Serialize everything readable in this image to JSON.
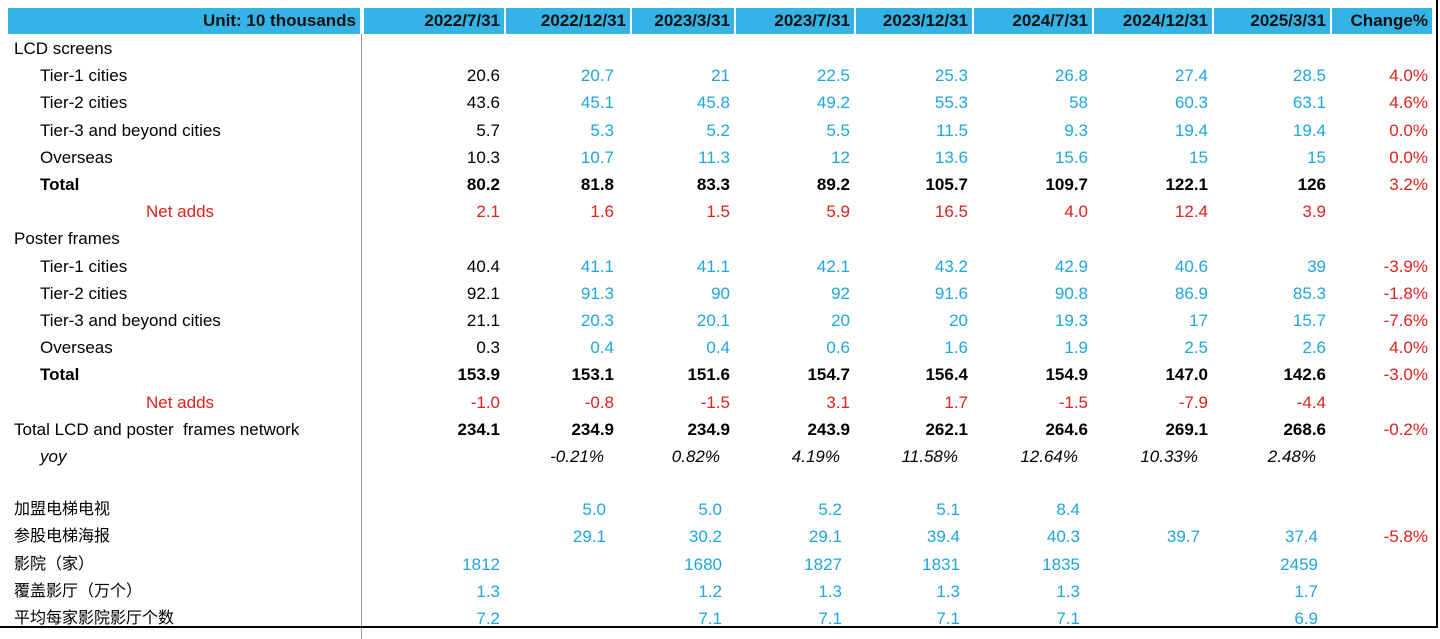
{
  "header": {
    "unit": "Unit: 10 thousands",
    "columns": [
      "2022/7/31",
      "2022/12/31",
      "2023/3/31",
      "2023/7/31",
      "2023/12/31",
      "2024/7/31",
      "2024/12/31",
      "2025/3/31",
      "Change%"
    ]
  },
  "rows": [
    {
      "label": "LCD screens"
    },
    {
      "label": "Tier-1 cities",
      "cells": [
        "20.6",
        "20.7",
        "21",
        "22.5",
        "25.3",
        "26.8",
        "27.4",
        "28.5",
        "4.0%"
      ]
    },
    {
      "label": "Tier-2 cities",
      "cells": [
        "43.6",
        "45.1",
        "45.8",
        "49.2",
        "55.3",
        "58",
        "60.3",
        "63.1",
        "4.6%"
      ]
    },
    {
      "label": "Tier-3 and beyond cities",
      "cells": [
        "5.7",
        "5.3",
        "5.2",
        "5.5",
        "11.5",
        "9.3",
        "19.4",
        "19.4",
        "0.0%"
      ]
    },
    {
      "label": "Overseas",
      "cells": [
        "10.3",
        "10.7",
        "11.3",
        "12",
        "13.6",
        "15.6",
        "15",
        "15",
        "0.0%"
      ]
    },
    {
      "label": "Total",
      "cells": [
        "80.2",
        "81.8",
        "83.3",
        "89.2",
        "105.7",
        "109.7",
        "122.1",
        "126",
        "3.2%"
      ]
    },
    {
      "label": "Net adds",
      "cells": [
        "2.1",
        "1.6",
        "1.5",
        "5.9",
        "16.5",
        "4.0",
        "12.4",
        "3.9",
        null
      ]
    },
    {
      "label": "Poster frames"
    },
    {
      "label": "Tier-1 cities",
      "cells": [
        "40.4",
        "41.1",
        "41.1",
        "42.1",
        "43.2",
        "42.9",
        "40.6",
        "39",
        "-3.9%"
      ]
    },
    {
      "label": "Tier-2 cities",
      "cells": [
        "92.1",
        "91.3",
        "90",
        "92",
        "91.6",
        "90.8",
        "86.9",
        "85.3",
        "-1.8%"
      ]
    },
    {
      "label": "Tier-3 and beyond cities",
      "cells": [
        "21.1",
        "20.3",
        "20.1",
        "20",
        "20",
        "19.3",
        "17",
        "15.7",
        "-7.6%"
      ]
    },
    {
      "label": "Overseas",
      "cells": [
        "0.3",
        "0.4",
        "0.4",
        "0.6",
        "1.6",
        "1.9",
        "2.5",
        "2.6",
        "4.0%"
      ]
    },
    {
      "label": "Total",
      "cells": [
        "153.9",
        "153.1",
        "151.6",
        "154.7",
        "156.4",
        "154.9",
        "147.0",
        "142.6",
        "-3.0%"
      ]
    },
    {
      "label": "Net adds",
      "cells": [
        "-1.0",
        "-0.8",
        "-1.5",
        "3.1",
        "1.7",
        "-1.5",
        "-7.9",
        "-4.4",
        null
      ]
    },
    {
      "label": "Total LCD and poster  frames network",
      "cells": [
        "234.1",
        "234.9",
        "234.9",
        "243.9",
        "262.1",
        "264.6",
        "269.1",
        "268.6",
        "-0.2%"
      ]
    },
    {
      "label": "yoy",
      "cells": [
        null,
        "-0.21%",
        "0.82%",
        "4.19%",
        "11.58%",
        "12.64%",
        "10.33%",
        "2.48%",
        null
      ]
    },
    {
      "label": "加盟电梯电视",
      "cells": [
        null,
        "5.0",
        "5.0",
        "5.2",
        "5.1",
        "8.4",
        null,
        null,
        null
      ]
    },
    {
      "label": "参股电梯海报",
      "cells": [
        null,
        "29.1",
        "30.2",
        "29.1",
        "39.4",
        "40.3",
        "39.7",
        "37.4",
        "-5.8%"
      ]
    },
    {
      "label": "影院（家）",
      "cells": [
        "1812",
        null,
        "1680",
        "1827",
        "1831",
        "1835",
        null,
        "2459",
        null
      ]
    },
    {
      "label": "覆盖影厅（万个）",
      "cells": [
        "1.3",
        null,
        "1.2",
        "1.3",
        "1.3",
        "1.3",
        null,
        "1.7",
        null
      ]
    },
    {
      "label": "平均每家影院影厅个数",
      "cells": [
        "7.2",
        null,
        "7.1",
        "7.1",
        "7.1",
        "7.1",
        null,
        "6.9",
        null
      ]
    }
  ]
}
